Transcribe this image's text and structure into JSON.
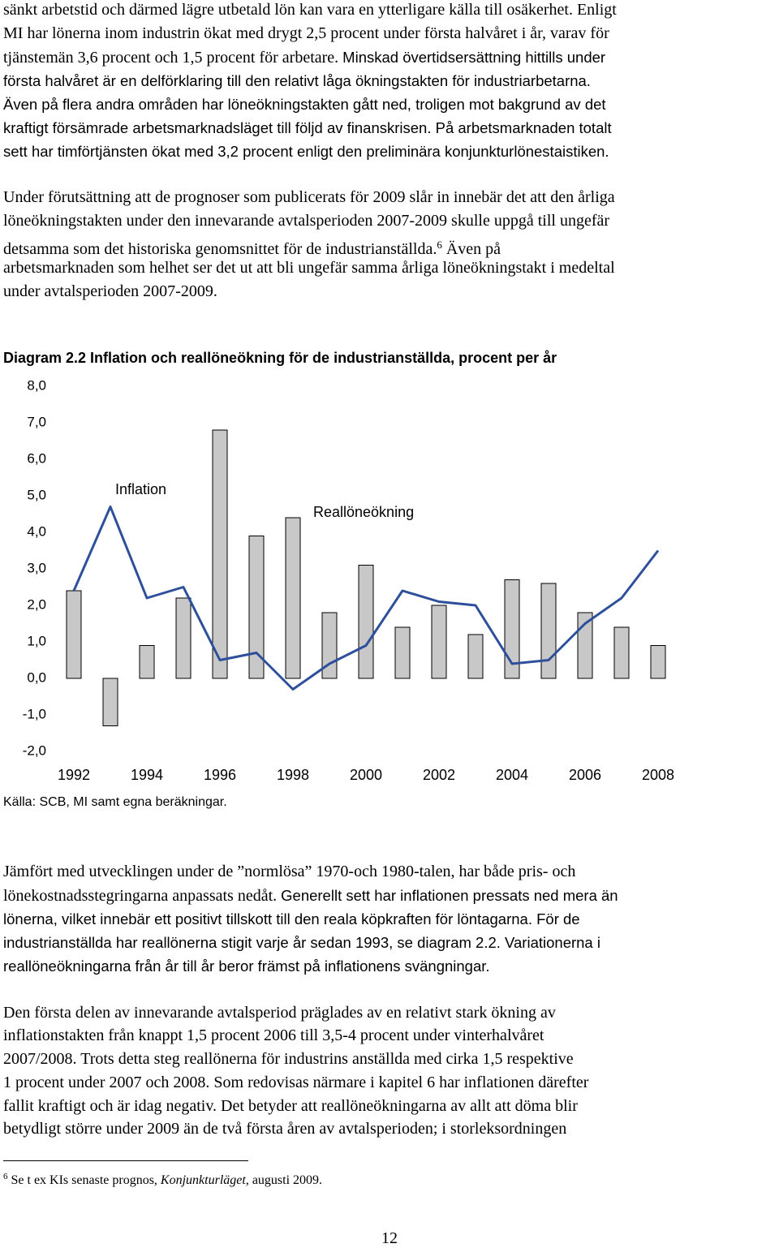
{
  "paragraphs": [
    [
      [
        "sänkt arbetstid och därmed lägre utbetald lön kan vara en ytterligare källa till osäkerhet. Enligt"
      ],
      [
        "MI har lönerna inom industrin ökat med drygt 2,5 procent under första halvåret i år, varav för"
      ],
      [
        "tjänstemän 3,6 procent och 1,5 procent för arbetare. ",
        {
          "text": "Minskad övertidsersättning hittills under",
          "style": "sans"
        }
      ],
      [
        {
          "text": "första halvåret är en delförklaring till den relativt låga ökningstakten för industriarbetarna.",
          "style": "sans"
        }
      ],
      [
        {
          "text": "Även på flera andra områden har löneökningstakten gått ned, troligen mot bakgrund av det",
          "style": "sans"
        }
      ],
      [
        {
          "text": "kraftigt försämrade arbetsmarknadsläget till följd av finanskrisen. På arbetsmarknaden totalt",
          "style": "sans"
        }
      ],
      [
        {
          "text": "sett har timförtjänsten ökat med 3,2 procent enligt den preliminära konjunkturlönestaistiken.",
          "style": "sans"
        }
      ]
    ],
    [
      [
        "Under förutsättning att de prognoser som publicerats för 2009 slår in innebär det att den årliga"
      ],
      [
        "löneökningstakten under den innevarande avtalsperioden 2007-2009 skulle uppgå till ungefär"
      ],
      [
        "detsamma som det historiska genomsnittet för de industrianställda.",
        {
          "text": "6",
          "style": "sup"
        },
        " Även på"
      ],
      [
        "arbetsmarknaden som helhet ser det ut att bli ungefär samma årliga löneökningstakt i medeltal"
      ],
      [
        "under avtalsperioden 2007-2009."
      ]
    ],
    [
      [
        "Jämfört med utvecklingen under de ”normlösa” 1970-och 1980-talen, har både pris- och"
      ],
      [
        "lönekostnadsstegringarna anpassats nedåt. ",
        {
          "text": "Generellt sett har inflationen pressats ned mera än",
          "style": "sans"
        }
      ],
      [
        {
          "text": "lönerna, vilket innebär ett positivt tillskott till den reala köpkraften för löntagarna. För de",
          "style": "sans"
        }
      ],
      [
        {
          "text": "industrianställda har reallönerna stigit varje år sedan 1993, se diagram 2.2. Variationerna i",
          "style": "sans"
        }
      ],
      [
        {
          "text": "reallöneökningarna från år till år beror främst på inflationens svängningar.",
          "style": "sans"
        }
      ]
    ],
    [
      [
        "Den första delen av innevarande avtalsperiod präglades av en relativt stark ökning av"
      ],
      [
        "inflationstakten från knappt 1,5 procent 2006 till 3,5-4 procent under vinterhalvåret"
      ],
      [
        "2007/2008. Trots detta steg reallönerna för industrins anställda med cirka 1,5 respektive"
      ],
      [
        "1 procent under 2007 och 2008. Som redovisas närmare i kapitel 6 har inflationen därefter"
      ],
      [
        "fallit kraftigt och är idag negativ. Det betyder att reallöneökningarna av allt att döma blir"
      ],
      [
        "betydligt större under 2009 än de två första åren av avtalsperioden; i storleksordningen"
      ]
    ]
  ],
  "chart_data": {
    "type": "bar-line",
    "title": "Diagram 2.2 Inflation och reallöneökning för de industrianställda, procent per år",
    "source": "Källa: SCB, MI samt egna beräkningar.",
    "categories": [
      "1992",
      null,
      "1994",
      null,
      "1996",
      null,
      "1998",
      null,
      "2000",
      null,
      "2002",
      null,
      "2004",
      null,
      "2006",
      null,
      "2008"
    ],
    "series": [
      {
        "name": "Reallöneökning",
        "kind": "bar",
        "color": "#c8c8c8",
        "values": [
          2.4,
          -1.3,
          0.9,
          2.2,
          6.8,
          3.9,
          4.4,
          1.8,
          3.1,
          1.4,
          2.0,
          1.2,
          2.7,
          2.6,
          1.8,
          1.4,
          0.9
        ]
      },
      {
        "name": "Inflation",
        "kind": "line",
        "color": "#2e4f9b",
        "values": [
          2.4,
          4.7,
          2.2,
          2.5,
          0.5,
          0.7,
          -0.3,
          0.4,
          0.9,
          2.4,
          2.1,
          2.0,
          0.4,
          0.5,
          1.5,
          2.2,
          3.5
        ]
      }
    ],
    "ylim": [
      -2,
      8
    ],
    "yticks": [
      {
        "value": 8,
        "label": "8,0"
      },
      {
        "value": 7,
        "label": "7,0"
      },
      {
        "value": 6,
        "label": "6,0"
      },
      {
        "value": 5,
        "label": "5,0"
      },
      {
        "value": 4,
        "label": "4,0"
      },
      {
        "value": 3,
        "label": "3,0"
      },
      {
        "value": 2,
        "label": "2,0"
      },
      {
        "value": 1,
        "label": "1,0"
      },
      {
        "value": 0,
        "label": "0,0"
      },
      {
        "value": -1,
        "label": "-1,0"
      },
      {
        "value": -2,
        "label": "-2,0"
      }
    ]
  },
  "footnote": [
    {
      "text": "6",
      "style": "sup"
    },
    " Se t ex KIs senaste prognos, ",
    {
      "text": "Konjunkturläget",
      "style": "italic"
    },
    ", augusti 2009."
  ],
  "page_number": "12"
}
